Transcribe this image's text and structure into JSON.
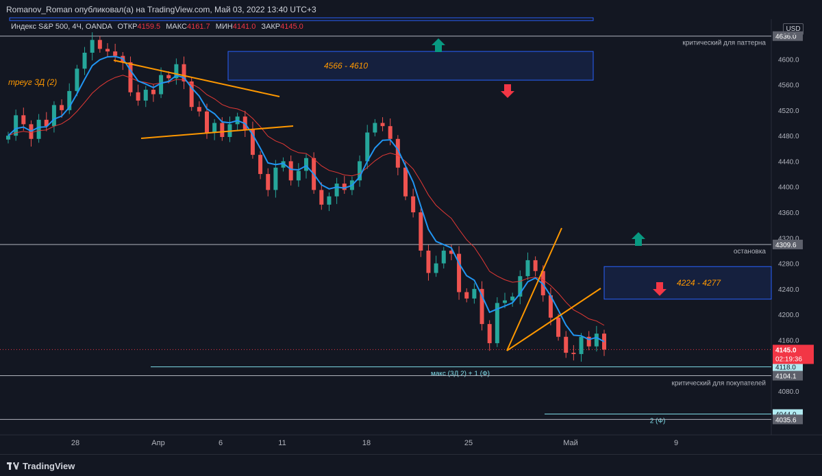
{
  "header": {
    "publisher": "Romanov_Roman опубликовал(а) на TradingView.com, Май 03, 2022 13:40 UTC+3"
  },
  "legend": {
    "symbol": "Индекс S&P 500, 4Ч, OANDA",
    "open_label": "ОТКР",
    "open": "4159.5",
    "high_label": "МАКС",
    "high": "4161.7",
    "low_label": "МИН",
    "low": "4141.0",
    "close_label": "ЗАКР",
    "close": "4145.0"
  },
  "currency": "USD",
  "footer": {
    "brand": "TradingView"
  },
  "colors": {
    "bg": "#131722",
    "up": "#26a69a",
    "down": "#ef5350",
    "ema_fast": "#2196f3",
    "ema_slow": "#e53935",
    "pattern": "#ff9800",
    "zone": "#1e3a8a",
    "level": "#b2b5be",
    "level_cyan": "#80deea"
  },
  "chart_data": {
    "type": "candlestick",
    "y_axis": {
      "ticks": [
        "4640.0",
        "4600.0",
        "4560.0",
        "4520.0",
        "4480.0",
        "4440.0",
        "4400.0",
        "4360.0",
        "4320.0",
        "4280.0",
        "4240.0",
        "4200.0",
        "4160.0",
        "4120.0",
        "4080.0"
      ],
      "range": [
        4018,
        4680
      ]
    },
    "x_axis": {
      "ticks": [
        "28",
        "Апр",
        "6",
        "11",
        "18",
        "25",
        "Май",
        "9"
      ]
    },
    "approx_close_path": [
      4480,
      4512,
      4498,
      4475,
      4505,
      4495,
      4528,
      4520,
      4550,
      4585,
      4610,
      4630,
      4616,
      4612,
      4605,
      4595,
      4548,
      4535,
      4552,
      4545,
      4575,
      4570,
      4592,
      4565,
      4525,
      4518,
      4485,
      4500,
      4478,
      4498,
      4510,
      4490,
      4450,
      4420,
      4395,
      4430,
      4440,
      4410,
      4425,
      4445,
      4395,
      4372,
      4385,
      4405,
      4395,
      4410,
      4440,
      4485,
      4500,
      4495,
      4475,
      4430,
      4385,
      4360,
      4300,
      4265,
      4280,
      4300,
      4295,
      4235,
      4225,
      4240,
      4185,
      4155,
      4218,
      4222,
      4228,
      4260,
      4285,
      4268,
      4230,
      4195,
      4165,
      4140,
      4138,
      4165,
      4150,
      4170,
      4145
    ],
    "series": [
      {
        "name": "",
        "type": "ema-fast"
      },
      {
        "name": "",
        "type": "ema-slow"
      }
    ],
    "levels": [
      {
        "price": 4636.0,
        "label": "4636.0",
        "note": "критический для паттерна"
      },
      {
        "price": 4309.6,
        "label": "4309.6",
        "note": "остановка"
      },
      {
        "price": 4118.0,
        "label": "4118.0",
        "note": "макс (3Д 2) + 1 (Ф)"
      },
      {
        "price": 4104.1,
        "label": "4104.1",
        "note": "критический для покупателей"
      },
      {
        "price": 4044.0,
        "label": "4044.0",
        "note": "2 (Ф)"
      },
      {
        "price": 4035.6,
        "label": "4035.6",
        "note": ""
      }
    ],
    "last_price": {
      "label": "4145.0",
      "timer": "02:19:36"
    },
    "zones": [
      {
        "label": "4566 - 4610",
        "top": 4612,
        "bottom": 4567
      },
      {
        "label": "4224 - 4277",
        "top": 4275,
        "bottom": 4224
      }
    ],
    "annotations": [
      {
        "text": "треуг 3Д (2)"
      }
    ]
  }
}
